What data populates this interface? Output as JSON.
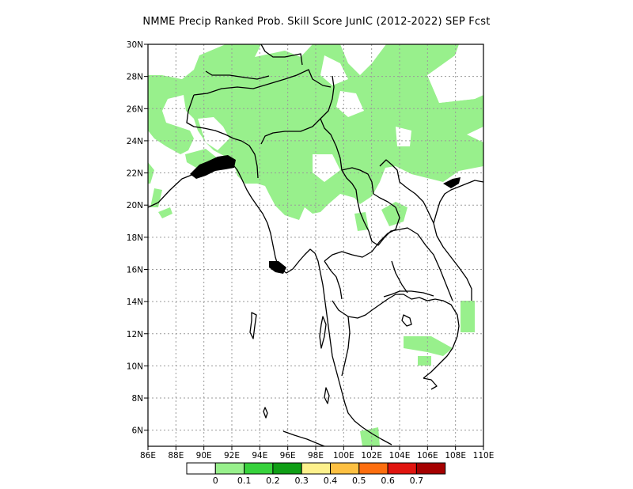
{
  "title": "NMME Precip Ranked Prob. Skill Score JunIC (2012-2022) SEP Fcst",
  "map": {
    "lon_range": [
      86,
      110
    ],
    "lat_range": [
      5,
      30
    ],
    "lon_ticks": [
      "86E",
      "88E",
      "90E",
      "92E",
      "94E",
      "96E",
      "98E",
      "100E",
      "102E",
      "104E",
      "106E",
      "108E",
      "110E"
    ],
    "lat_ticks": [
      "6N",
      "8N",
      "10N",
      "12N",
      "14N",
      "16N",
      "18N",
      "20N",
      "22N",
      "24N",
      "26N",
      "28N",
      "30N"
    ],
    "grid": "dotted",
    "fill_color_shown": "#98f08c",
    "coastline_color": "#000000"
  },
  "colorbar": {
    "colors": [
      "#ffffff",
      "#98f08c",
      "#37d23c",
      "#0f9e15",
      "#fdf08c",
      "#fdc042",
      "#fd6e0f",
      "#e0140f",
      "#a50000"
    ],
    "labels": [
      "0",
      "0.1",
      "0.2",
      "0.3",
      "0.4",
      "0.5",
      "0.6",
      "0.7"
    ]
  }
}
